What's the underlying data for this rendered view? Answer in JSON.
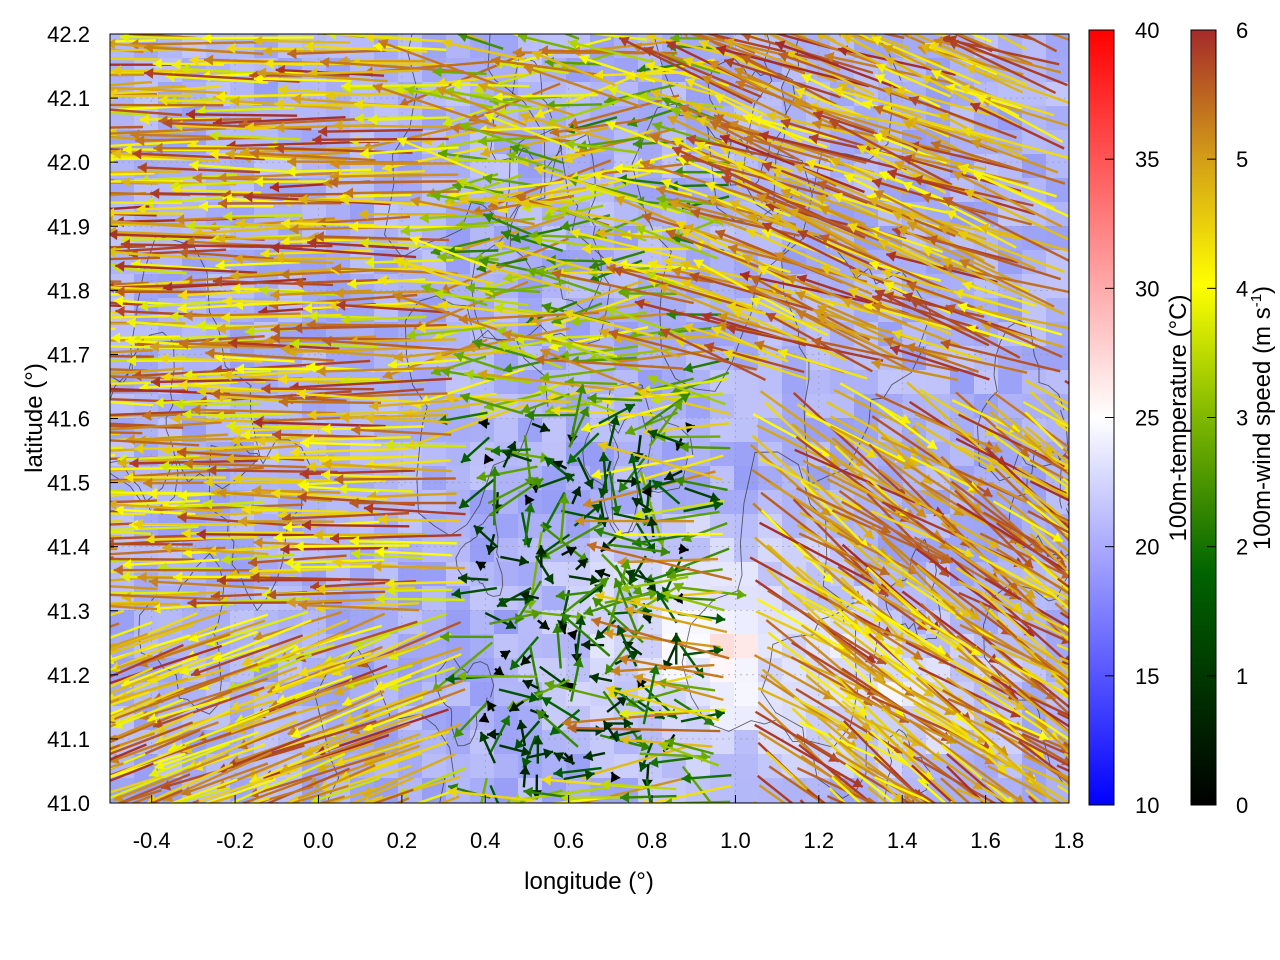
{
  "chart_data": {
    "type": "vector-field",
    "xlabel": "longitude (°)",
    "ylabel": "latitude (°)",
    "xlim": [
      -0.5,
      1.8
    ],
    "ylim": [
      41.0,
      42.2
    ],
    "xticks": [
      "-0.4",
      "-0.2",
      "0.0",
      "0.2",
      "0.4",
      "0.6",
      "0.8",
      "1.0",
      "1.2",
      "1.4",
      "1.6",
      "1.8"
    ],
    "yticks": [
      "41.0",
      "41.1",
      "41.2",
      "41.3",
      "41.4",
      "41.5",
      "41.6",
      "41.7",
      "41.8",
      "41.9",
      "42.0",
      "42.1",
      "42.2"
    ],
    "grid": true,
    "background_field": {
      "name": "100m-temperature (°C)",
      "range": [
        10,
        40
      ],
      "ticks": [
        "10",
        "15",
        "20",
        "25",
        "30",
        "35",
        "40"
      ],
      "colors": [
        "#0000ff",
        "#ffffff",
        "#ff0000"
      ],
      "typical_range": [
        15,
        26
      ]
    },
    "vector_field": {
      "name": "100m-wind speed (m s-1)",
      "range": [
        0,
        6
      ],
      "ticks": [
        "0",
        "1",
        "2",
        "3",
        "4",
        "5",
        "6"
      ],
      "colors": [
        "#000000",
        "#006400",
        "#7fb800",
        "#ffff00",
        "#d4a017",
        "#a52a2a"
      ],
      "description_regions": [
        {
          "region": "west (lon < 0.4)",
          "direction": "westward",
          "speed": [
            4,
            6
          ]
        },
        {
          "region": "center (lon 0.4-1.2, lat 41.1-41.5)",
          "direction": "variable",
          "speed": [
            0,
            3
          ]
        },
        {
          "region": "east (lon > 1.2)",
          "direction": "north-westward / south-eastward",
          "speed": [
            4,
            6
          ]
        }
      ]
    },
    "colorbars": [
      {
        "label_main": "100m-temperature (°C)",
        "min": 10,
        "max": 40
      },
      {
        "label_main": "100m-wind speed (m s",
        "label_sup": "-1",
        "label_end": ")",
        "min": 0,
        "max": 6
      }
    ]
  }
}
